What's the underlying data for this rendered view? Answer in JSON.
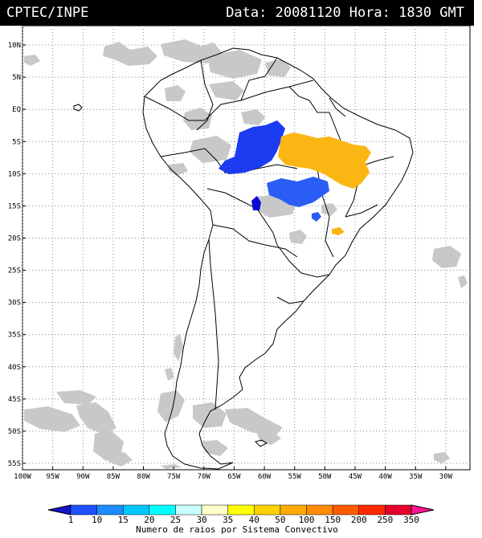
{
  "header": {
    "org": "CPTEC/INPE",
    "stamp": "Data: 20081120 Hora: 1830 GMT"
  },
  "map": {
    "lat_range": [
      -56,
      13
    ],
    "lon_range": [
      -100,
      -26
    ],
    "lat_ticks": [
      "10N",
      "5N",
      "EQ",
      "5S",
      "10S",
      "15S",
      "20S",
      "25S",
      "30S",
      "35S",
      "40S",
      "45S",
      "50S",
      "55S"
    ],
    "lon_ticks": [
      "100W",
      "95W",
      "90W",
      "85W",
      "80W",
      "75W",
      "70W",
      "65W",
      "60W",
      "55W",
      "50W",
      "45W",
      "40W",
      "35W",
      "30W"
    ],
    "gridlines": "dotted",
    "land_outline_color": "#000000",
    "cloud_color": "#c8c8c8",
    "clusters": [
      {
        "name": "blue-cluster-north",
        "color": "#1c3cf2",
        "center": [
          -62,
          -7.5
        ]
      },
      {
        "name": "blue-cluster-south",
        "color": "#2a5df5",
        "center": [
          -56,
          -13
        ]
      },
      {
        "name": "dark-blue-cluster",
        "color": "#0a0ad8",
        "center": [
          -64.5,
          -14.8
        ]
      },
      {
        "name": "orange-cluster",
        "color": "#fbb614",
        "center": [
          -49,
          -7
        ]
      },
      {
        "name": "orange-spot",
        "color": "#fbb614",
        "center": [
          -48,
          -19.5
        ]
      }
    ]
  },
  "colorbar": {
    "ticks": [
      "1",
      "10",
      "15",
      "20",
      "25",
      "30",
      "35",
      "40",
      "50",
      "100",
      "150",
      "200",
      "250",
      "350"
    ],
    "colors": [
      "#1414c8",
      "#1e50ff",
      "#1e8cff",
      "#00c8ff",
      "#00ffff",
      "#c8ffff",
      "#ffffc8",
      "#ffff00",
      "#ffd200",
      "#ffaa00",
      "#ff8c00",
      "#ff5a00",
      "#ff2800",
      "#e6002d",
      "#ff1493"
    ],
    "label": "Numero de raios por Sistema Convectivo"
  }
}
